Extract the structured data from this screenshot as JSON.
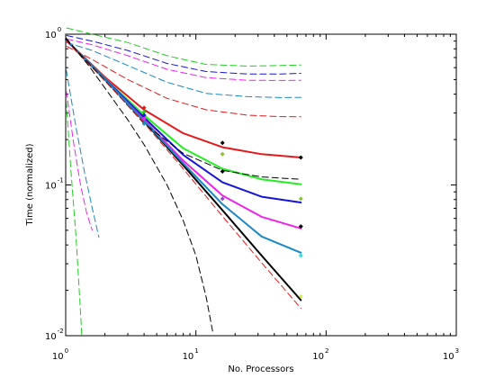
{
  "chart_data": {
    "type": "line",
    "title": "",
    "xlabel": "No. Processors",
    "ylabel": "Time (normalized)",
    "xscale": "log",
    "yscale": "log",
    "xlim": [
      1,
      1000
    ],
    "ylim": [
      0.01,
      1
    ],
    "grid": false,
    "legend": "none",
    "x_ticks": [
      {
        "value": 1,
        "base": "10",
        "exp": "0"
      },
      {
        "value": 10,
        "base": "10",
        "exp": "1"
      },
      {
        "value": 100,
        "base": "10",
        "exp": "2"
      },
      {
        "value": 1000,
        "base": "10",
        "exp": "3"
      }
    ],
    "y_ticks": [
      {
        "value": 0.01,
        "base": "10",
        "exp": "-2"
      },
      {
        "value": 0.1,
        "base": "10",
        "exp": "-1"
      },
      {
        "value": 1,
        "base": "10",
        "exp": "0"
      }
    ],
    "series": [
      {
        "style": "solid",
        "color": "#000000",
        "width": 2,
        "x": [
          1,
          2,
          4,
          8,
          16,
          32,
          64
        ],
        "y": [
          0.92,
          0.5,
          0.265,
          0.135,
          0.068,
          0.034,
          0.0172
        ]
      },
      {
        "style": "solid",
        "color": "#e41a1c",
        "width": 2,
        "x": [
          1,
          2,
          4,
          8,
          16,
          32,
          64
        ],
        "y": [
          0.92,
          0.52,
          0.315,
          0.22,
          0.178,
          0.16,
          0.152
        ]
      },
      {
        "style": "solid",
        "color": "#22ee22",
        "width": 2,
        "x": [
          1,
          2,
          4,
          8,
          16,
          32,
          64
        ],
        "y": [
          0.92,
          0.51,
          0.29,
          0.175,
          0.128,
          0.109,
          0.101
        ]
      },
      {
        "style": "solid",
        "color": "#1515d8",
        "width": 2,
        "x": [
          1,
          2,
          4,
          8,
          16,
          32,
          64
        ],
        "y": [
          0.92,
          0.505,
          0.28,
          0.158,
          0.104,
          0.0835,
          0.0765
        ]
      },
      {
        "style": "solid",
        "color": "#ee22ee",
        "width": 2,
        "x": [
          1,
          2,
          4,
          8,
          16,
          32,
          64
        ],
        "y": [
          0.92,
          0.5,
          0.27,
          0.145,
          0.085,
          0.0615,
          0.0515
        ]
      },
      {
        "style": "solid",
        "color": "#1a88c4",
        "width": 2,
        "x": [
          1,
          2,
          4,
          8,
          16,
          32,
          64
        ],
        "y": [
          0.92,
          0.5,
          0.267,
          0.139,
          0.0745,
          0.0455,
          0.0355
        ]
      },
      {
        "style": "dashed",
        "color": "#22cc22",
        "x": [
          1.02,
          1.6,
          3,
          6,
          12,
          25,
          45,
          64
        ],
        "y": [
          1.1,
          1.0,
          0.88,
          0.72,
          0.63,
          0.615,
          0.62,
          0.625
        ]
      },
      {
        "style": "dashed",
        "color": "#1515d8",
        "x": [
          1.02,
          1.6,
          3,
          6,
          12,
          25,
          45,
          64
        ],
        "y": [
          0.98,
          0.9,
          0.78,
          0.64,
          0.565,
          0.545,
          0.545,
          0.55
        ]
      },
      {
        "style": "dashed",
        "color": "#ee22ee",
        "x": [
          1.02,
          1.6,
          3,
          6,
          12,
          25,
          45,
          64
        ],
        "y": [
          0.93,
          0.85,
          0.72,
          0.585,
          0.515,
          0.495,
          0.493,
          0.495
        ]
      },
      {
        "style": "dashed",
        "color": "#1a88c4",
        "x": [
          1.02,
          1.6,
          3,
          6,
          12,
          25,
          45,
          64
        ],
        "y": [
          0.88,
          0.78,
          0.62,
          0.48,
          0.405,
          0.385,
          0.38,
          0.381
        ]
      },
      {
        "style": "dashed",
        "color": "#e41a1c",
        "x": [
          1.02,
          1.6,
          3,
          6,
          12,
          25,
          45,
          64
        ],
        "y": [
          0.83,
          0.68,
          0.5,
          0.375,
          0.315,
          0.29,
          0.284,
          0.283
        ]
      },
      {
        "style": "dashed",
        "color": "#000000",
        "x": [
          1,
          2,
          4,
          8,
          16,
          32,
          64
        ],
        "y": [
          0.93,
          0.495,
          0.255,
          0.162,
          0.125,
          0.113,
          0.109
        ]
      },
      {
        "style": "dashed",
        "color": "#e41a1c",
        "x": [
          1,
          2,
          4,
          8,
          16,
          32,
          64
        ],
        "y": [
          0.91,
          0.49,
          0.258,
          0.128,
          0.062,
          0.0305,
          0.0152
        ]
      },
      {
        "style": "dashed",
        "color": "#000000",
        "x": [
          1,
          1.5,
          2,
          3,
          4,
          6,
          8,
          10,
          12,
          13.5
        ],
        "y": [
          0.95,
          0.62,
          0.44,
          0.27,
          0.185,
          0.1,
          0.058,
          0.034,
          0.018,
          0.0105
        ]
      },
      {
        "style": "dashed",
        "color": "#1a88c4",
        "x": [
          1.01,
          1.2,
          1.4,
          1.6,
          1.8
        ],
        "y": [
          0.58,
          0.24,
          0.12,
          0.07,
          0.045
        ]
      },
      {
        "style": "dashed",
        "color": "#ee22ee",
        "x": [
          1.01,
          1.15,
          1.3,
          1.45,
          1.6
        ],
        "y": [
          0.42,
          0.19,
          0.1,
          0.065,
          0.05
        ]
      },
      {
        "style": "dashed",
        "color": "#22cc22",
        "x": [
          1.01,
          1.1,
          1.2,
          1.28,
          1.33
        ],
        "y": [
          0.36,
          0.12,
          0.045,
          0.018,
          0.01
        ]
      }
    ],
    "markers": [
      {
        "x": 4,
        "y": 0.325,
        "color": "#e41a1c"
      },
      {
        "x": 4,
        "y": 0.305,
        "color": "#22cc22"
      },
      {
        "x": 4,
        "y": 0.29,
        "color": "#1515d8"
      },
      {
        "x": 4,
        "y": 0.275,
        "color": "#ee22ee"
      },
      {
        "x": 4,
        "y": 0.255,
        "color": "#1a88c4"
      },
      {
        "x": 16,
        "y": 0.19,
        "color": "#000000"
      },
      {
        "x": 16,
        "y": 0.16,
        "color": "#8bbf3a"
      },
      {
        "x": 16,
        "y": 0.123,
        "color": "#000000"
      },
      {
        "x": 16,
        "y": 0.081,
        "color": "#8a4fd0"
      },
      {
        "x": 64,
        "y": 0.152,
        "color": "#000000"
      },
      {
        "x": 64,
        "y": 0.081,
        "color": "#8bbf3a"
      },
      {
        "x": 64,
        "y": 0.053,
        "color": "#000000"
      },
      {
        "x": 64,
        "y": 0.034,
        "color": "#33dddd"
      },
      {
        "x": 64,
        "y": 0.0182,
        "color": "#ccee44"
      }
    ]
  }
}
